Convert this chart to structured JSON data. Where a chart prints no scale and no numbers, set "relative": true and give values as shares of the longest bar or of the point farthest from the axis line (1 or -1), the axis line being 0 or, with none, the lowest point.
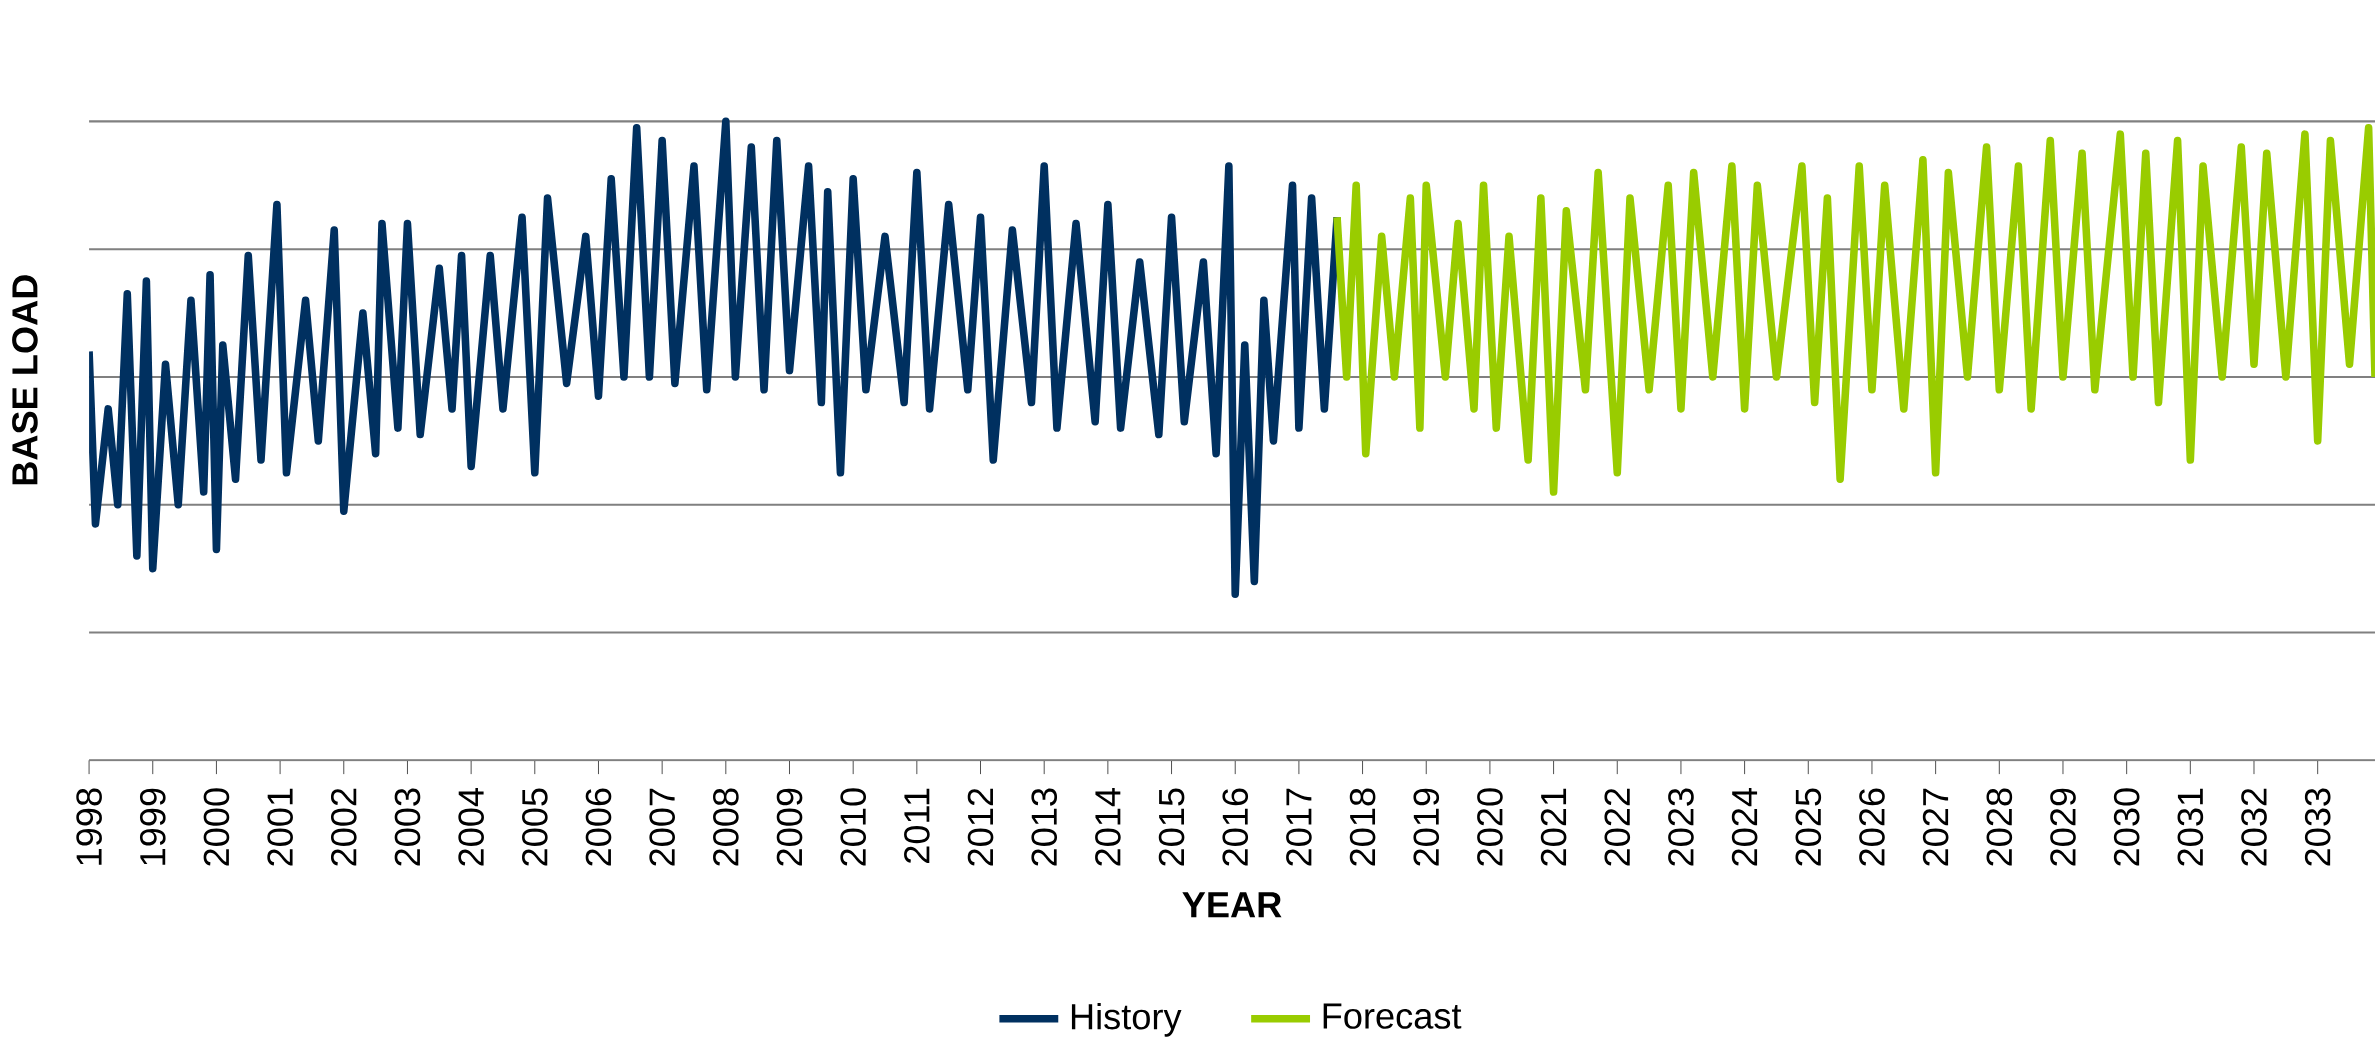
{
  "chart_data": {
    "type": "line",
    "relative": true,
    "xlabel": "YEAR",
    "ylabel": "BASE LOAD",
    "xlim": [
      1998,
      2033.9
    ],
    "xticks": [
      1998,
      1999,
      2000,
      2001,
      2002,
      2003,
      2004,
      2005,
      2006,
      2007,
      2008,
      2009,
      2010,
      2011,
      2012,
      2013,
      2014,
      2015,
      2016,
      2017,
      2018,
      2019,
      2020,
      2021,
      2022,
      2023,
      2024,
      2025,
      2026,
      2027,
      2028,
      2029,
      2030,
      2031,
      2032,
      2033
    ],
    "grid": "y",
    "legend": "bottom",
    "line_style": "solid",
    "marker": "none",
    "series": [
      {
        "name": "History",
        "color": "#003060",
        "x": [
          1998.0,
          1998.1,
          1998.3,
          1998.45,
          1998.6,
          1998.75,
          1998.9,
          1999.0,
          1999.2,
          1999.4,
          1999.6,
          1999.8,
          1999.9,
          2000.0,
          2000.1,
          2000.3,
          2000.5,
          2000.7,
          2000.95,
          2001.1,
          2001.4,
          2001.6,
          2001.85,
          2002.0,
          2002.3,
          2002.5,
          2002.6,
          2002.85,
          2003.0,
          2003.2,
          2003.5,
          2003.7,
          2003.85,
          2004.0,
          2004.3,
          2004.5,
          2004.8,
          2005.0,
          2005.2,
          2005.5,
          2005.8,
          2006.0,
          2006.2,
          2006.4,
          2006.6,
          2006.8,
          2007.0,
          2007.2,
          2007.5,
          2007.7,
          2008.0,
          2008.15,
          2008.4,
          2008.6,
          2008.8,
          2009.0,
          2009.3,
          2009.5,
          2009.6,
          2009.8,
          2010.0,
          2010.2,
          2010.5,
          2010.8,
          2011.0,
          2011.2,
          2011.5,
          2011.8,
          2012.0,
          2012.2,
          2012.5,
          2012.8,
          2013.0,
          2013.2,
          2013.5,
          2013.8,
          2014.0,
          2014.2,
          2014.5,
          2014.8,
          2015.0,
          2015.2,
          2015.5,
          2015.7,
          2015.9,
          2016.0,
          2016.15,
          2016.3,
          2016.45,
          2016.6,
          2016.9,
          2017.0,
          2017.2,
          2017.4,
          2017.6
        ],
        "values": [
          0.64,
          0.37,
          0.55,
          0.4,
          0.73,
          0.32,
          0.75,
          0.3,
          0.62,
          0.4,
          0.72,
          0.42,
          0.76,
          0.33,
          0.65,
          0.44,
          0.79,
          0.47,
          0.87,
          0.45,
          0.72,
          0.5,
          0.83,
          0.39,
          0.7,
          0.48,
          0.84,
          0.52,
          0.84,
          0.51,
          0.77,
          0.55,
          0.79,
          0.46,
          0.79,
          0.55,
          0.85,
          0.45,
          0.88,
          0.59,
          0.82,
          0.57,
          0.91,
          0.6,
          0.99,
          0.6,
          0.97,
          0.59,
          0.93,
          0.58,
          1.0,
          0.6,
          0.96,
          0.58,
          0.97,
          0.61,
          0.93,
          0.56,
          0.89,
          0.45,
          0.91,
          0.58,
          0.82,
          0.56,
          0.92,
          0.55,
          0.87,
          0.58,
          0.85,
          0.47,
          0.83,
          0.56,
          0.93,
          0.52,
          0.84,
          0.53,
          0.87,
          0.52,
          0.78,
          0.51,
          0.85,
          0.53,
          0.78,
          0.48,
          0.93,
          0.26,
          0.65,
          0.28,
          0.72,
          0.5,
          0.9,
          0.52,
          0.88,
          0.55,
          0.85
        ]
      },
      {
        "name": "Forecast",
        "color": "#99cc00",
        "x": [
          2017.6,
          2017.75,
          2017.9,
          2018.05,
          2018.3,
          2018.5,
          2018.75,
          2018.9,
          2019.0,
          2019.3,
          2019.5,
          2019.75,
          2019.9,
          2020.1,
          2020.3,
          2020.6,
          2020.8,
          2021.0,
          2021.2,
          2021.5,
          2021.7,
          2022.0,
          2022.2,
          2022.5,
          2022.8,
          2023.0,
          2023.2,
          2023.5,
          2023.8,
          2024.0,
          2024.2,
          2024.5,
          2024.9,
          2025.1,
          2025.3,
          2025.5,
          2025.8,
          2026.0,
          2026.2,
          2026.5,
          2026.8,
          2027.0,
          2027.2,
          2027.5,
          2027.8,
          2028.0,
          2028.3,
          2028.5,
          2028.8,
          2029.0,
          2029.3,
          2029.5,
          2029.9,
          2030.1,
          2030.3,
          2030.5,
          2030.8,
          2031.0,
          2031.2,
          2031.5,
          2031.8,
          2032.0,
          2032.2,
          2032.5,
          2032.8,
          2033.0,
          2033.2,
          2033.5,
          2033.8,
          2033.9
        ],
        "values": [
          0.85,
          0.6,
          0.9,
          0.48,
          0.82,
          0.6,
          0.88,
          0.52,
          0.9,
          0.6,
          0.84,
          0.55,
          0.9,
          0.52,
          0.82,
          0.47,
          0.88,
          0.42,
          0.86,
          0.58,
          0.92,
          0.45,
          0.88,
          0.58,
          0.9,
          0.55,
          0.92,
          0.6,
          0.93,
          0.55,
          0.9,
          0.6,
          0.93,
          0.56,
          0.88,
          0.44,
          0.93,
          0.58,
          0.9,
          0.55,
          0.94,
          0.45,
          0.92,
          0.6,
          0.96,
          0.58,
          0.93,
          0.55,
          0.97,
          0.6,
          0.95,
          0.58,
          0.98,
          0.6,
          0.95,
          0.56,
          0.97,
          0.47,
          0.93,
          0.6,
          0.96,
          0.62,
          0.95,
          0.6,
          0.98,
          0.5,
          0.97,
          0.62,
          0.99,
          0.6
        ]
      }
    ]
  }
}
